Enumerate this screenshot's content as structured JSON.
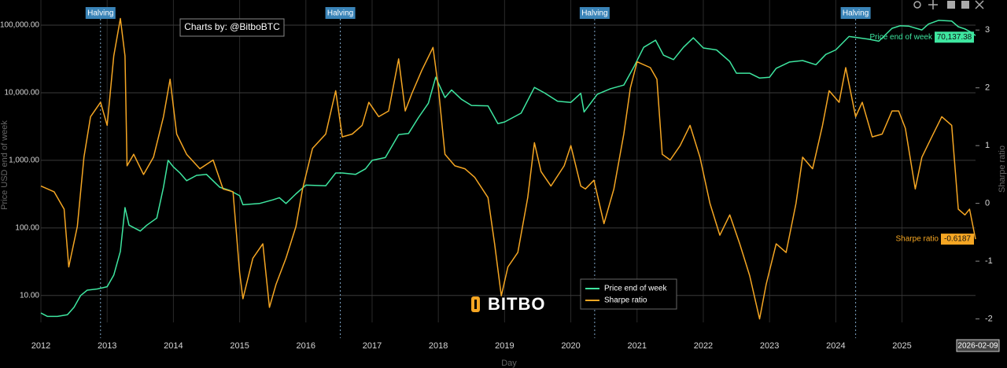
{
  "chart_data": {
    "type": "line",
    "xlabel": "Day",
    "ylabel": "Price USD end of week",
    "y2label": "Sharpe ratio",
    "credit": "Charts by: @BitboBTC",
    "logo": "BITBO",
    "halving_label": "Halving",
    "halvings": [
      2012.9,
      2016.52,
      2020.36,
      2024.3
    ],
    "hover_date": "2026-02-09",
    "ylog": true,
    "grid": true,
    "xlim": [
      2012,
      2026.11
    ],
    "xticks": [
      2012,
      2013,
      2014,
      2015,
      2016,
      2017,
      2018,
      2019,
      2020,
      2021,
      2022,
      2023,
      2024,
      2025
    ],
    "ylim": [
      4,
      236000
    ],
    "yticks": [
      {
        "value": 10,
        "label": "10.00"
      },
      {
        "value": 100,
        "label": "100.00"
      },
      {
        "value": 1000,
        "label": "1,000.00"
      },
      {
        "value": 10000,
        "label": "10,000.00"
      },
      {
        "value": 100000,
        "label": "100,000.00"
      }
    ],
    "y2lim": [
      -2.06,
      3.52
    ],
    "y2ticks": [
      -2,
      -1,
      0,
      1,
      2,
      3
    ],
    "series": [
      {
        "name": "Price end of week",
        "color": "#3ee6a0",
        "hover_label": "70,137.38",
        "x": [
          2012.0,
          2012.1,
          2012.25,
          2012.4,
          2012.5,
          2012.6,
          2012.7,
          2012.85,
          2013.0,
          2013.1,
          2013.2,
          2013.27,
          2013.33,
          2013.5,
          2013.6,
          2013.75,
          2013.85,
          2013.92,
          2014.0,
          2014.1,
          2014.2,
          2014.35,
          2014.5,
          2014.7,
          2014.85,
          2015.0,
          2015.05,
          2015.3,
          2015.5,
          2015.6,
          2015.7,
          2015.85,
          2016.0,
          2016.3,
          2016.45,
          2016.55,
          2016.75,
          2016.9,
          2017.0,
          2017.2,
          2017.4,
          2017.55,
          2017.7,
          2017.85,
          2017.96,
          2018.1,
          2018.2,
          2018.35,
          2018.5,
          2018.75,
          2018.9,
          2019.0,
          2019.25,
          2019.45,
          2019.6,
          2019.8,
          2020.0,
          2020.15,
          2020.2,
          2020.4,
          2020.6,
          2020.8,
          2020.95,
          2021.1,
          2021.28,
          2021.4,
          2021.55,
          2021.7,
          2021.85,
          2022.0,
          2022.2,
          2022.4,
          2022.5,
          2022.7,
          2022.85,
          2023.0,
          2023.1,
          2023.3,
          2023.5,
          2023.7,
          2023.85,
          2024.0,
          2024.2,
          2024.5,
          2024.65,
          2024.85,
          2024.97,
          2025.1,
          2025.3,
          2025.4,
          2025.55,
          2025.75,
          2025.85,
          2025.95,
          2026.05,
          2026.11
        ],
        "values": [
          5.5,
          4.9,
          4.9,
          5.2,
          6.7,
          10,
          12,
          12.5,
          13.5,
          20,
          45,
          200,
          110,
          90,
          110,
          140,
          400,
          1000,
          800,
          650,
          500,
          600,
          620,
          400,
          360,
          300,
          220,
          230,
          260,
          280,
          230,
          320,
          430,
          420,
          650,
          650,
          620,
          750,
          1000,
          1100,
          2400,
          2500,
          4300,
          7000,
          17000,
          8500,
          11000,
          8000,
          6500,
          6400,
          3500,
          3700,
          5000,
          12000,
          10000,
          7500,
          7200,
          9800,
          5200,
          9500,
          11500,
          13000,
          24000,
          47000,
          60000,
          36000,
          31000,
          47000,
          65000,
          46000,
          43000,
          29000,
          19500,
          19500,
          16500,
          17000,
          23000,
          28500,
          30000,
          26000,
          37000,
          43000,
          68000,
          62000,
          58000,
          90000,
          98000,
          97000,
          85000,
          104000,
          118000,
          115000,
          95000,
          88000,
          78000,
          70137.38
        ]
      },
      {
        "name": "Sharpe ratio",
        "color": "#f5a623",
        "axis": "y2",
        "x": [
          2012.0,
          2012.2,
          2012.35,
          2012.42,
          2012.55,
          2012.65,
          2012.75,
          2012.9,
          2013.0,
          2013.1,
          2013.2,
          2013.27,
          2013.3,
          2013.4,
          2013.55,
          2013.7,
          2013.85,
          2013.95,
          2014.05,
          2014.2,
          2014.4,
          2014.6,
          2014.75,
          2014.9,
          2015.0,
          2015.05,
          2015.2,
          2015.35,
          2015.45,
          2015.55,
          2015.7,
          2015.85,
          2015.95,
          2016.1,
          2016.3,
          2016.45,
          2016.55,
          2016.7,
          2016.85,
          2016.95,
          2017.1,
          2017.25,
          2017.4,
          2017.5,
          2017.6,
          2017.75,
          2017.92,
          2018.0,
          2018.1,
          2018.25,
          2018.4,
          2018.55,
          2018.75,
          2018.85,
          2018.95,
          2019.05,
          2019.2,
          2019.35,
          2019.45,
          2019.55,
          2019.7,
          2019.9,
          2020.0,
          2020.15,
          2020.22,
          2020.35,
          2020.5,
          2020.65,
          2020.8,
          2020.9,
          2021.0,
          2021.2,
          2021.3,
          2021.38,
          2021.5,
          2021.65,
          2021.8,
          2021.95,
          2022.1,
          2022.25,
          2022.4,
          2022.55,
          2022.7,
          2022.85,
          2022.95,
          2023.1,
          2023.25,
          2023.4,
          2023.5,
          2023.65,
          2023.8,
          2023.9,
          2024.05,
          2024.15,
          2024.3,
          2024.4,
          2024.55,
          2024.7,
          2024.85,
          2024.95,
          2025.05,
          2025.2,
          2025.3,
          2025.45,
          2025.6,
          2025.75,
          2025.85,
          2025.95,
          2026.02,
          2026.11
        ],
        "values": [
          0.3,
          0.2,
          -0.1,
          -1.1,
          -0.4,
          0.8,
          1.5,
          1.75,
          1.35,
          2.55,
          3.2,
          2.55,
          0.65,
          0.85,
          0.5,
          0.8,
          1.5,
          2.15,
          1.2,
          0.85,
          0.6,
          0.75,
          0.25,
          0.2,
          -1.2,
          -1.65,
          -0.95,
          -0.7,
          -1.8,
          -1.4,
          -0.95,
          -0.4,
          0.25,
          0.95,
          1.2,
          1.95,
          1.15,
          1.2,
          1.35,
          1.75,
          1.5,
          1.6,
          2.5,
          1.6,
          1.9,
          2.3,
          2.7,
          2.0,
          0.85,
          0.65,
          0.6,
          0.45,
          0.1,
          -0.7,
          -1.6,
          -1.1,
          -0.85,
          0.1,
          1.05,
          0.55,
          0.3,
          0.65,
          1.0,
          0.3,
          0.25,
          0.4,
          -0.35,
          0.25,
          1.2,
          2.0,
          2.45,
          2.35,
          2.15,
          0.85,
          0.75,
          1.0,
          1.35,
          0.8,
          0.0,
          -0.55,
          -0.2,
          -0.7,
          -1.25,
          -2.0,
          -1.4,
          -0.7,
          -0.85,
          0.0,
          0.8,
          0.6,
          1.35,
          1.95,
          1.75,
          2.35,
          1.5,
          1.75,
          1.15,
          1.2,
          1.6,
          1.6,
          1.3,
          0.25,
          0.8,
          1.15,
          1.5,
          1.35,
          -0.1,
          -0.2,
          -0.1,
          -0.6187
        ]
      }
    ]
  }
}
